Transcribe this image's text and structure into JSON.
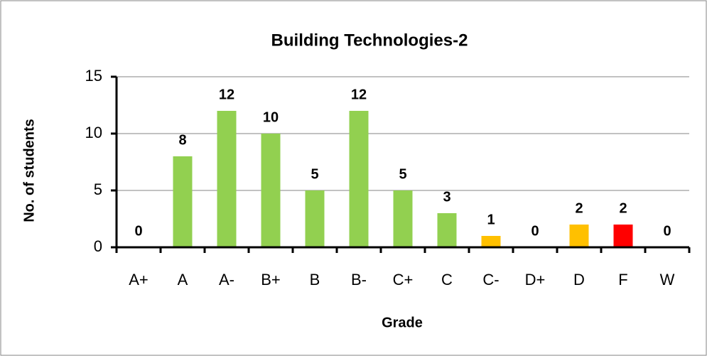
{
  "chart_data": {
    "type": "bar",
    "title": "Building Technologies-2",
    "x_label": "Grade",
    "y_label": "No. of students",
    "categories": [
      "A+",
      "A",
      "A-",
      "B+",
      "B",
      "B-",
      "C+",
      "C",
      "C-",
      "D+",
      "D",
      "F",
      "W"
    ],
    "values": [
      0,
      8,
      12,
      10,
      5,
      12,
      5,
      3,
      1,
      0,
      2,
      2,
      0
    ],
    "colors": [
      "#92d050",
      "#92d050",
      "#92d050",
      "#92d050",
      "#92d050",
      "#92d050",
      "#92d050",
      "#92d050",
      "#ffc000",
      "#ffc000",
      "#ffc000",
      "#ff0000",
      "#92d050"
    ],
    "ylim": [
      0,
      15
    ],
    "yticks": [
      0,
      5,
      10,
      15
    ],
    "grid": true
  }
}
